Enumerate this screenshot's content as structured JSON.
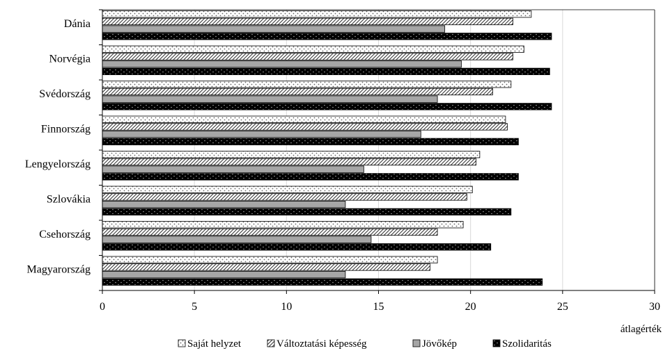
{
  "chart_data": {
    "type": "bar",
    "orientation": "horizontal",
    "categories": [
      "Dánia",
      "Norvégia",
      "Svédország",
      "Finnország",
      "Lengyelország",
      "Szlovákia",
      "Csehország",
      "Magyarország"
    ],
    "series": [
      {
        "name": "Saját helyzet",
        "pattern": "dots",
        "values": [
          23.3,
          22.9,
          22.2,
          21.9,
          20.5,
          20.1,
          19.6,
          18.2
        ]
      },
      {
        "name": "Változtatási képesség",
        "pattern": "hatch",
        "values": [
          22.3,
          22.3,
          21.2,
          22.0,
          20.3,
          19.8,
          18.2,
          17.8
        ]
      },
      {
        "name": "Jövőkép",
        "pattern": "gray",
        "values": [
          18.6,
          19.5,
          18.2,
          17.3,
          14.2,
          13.2,
          14.6,
          13.2
        ]
      },
      {
        "name": "Szolidaritás",
        "pattern": "black-dots",
        "values": [
          24.4,
          24.3,
          24.4,
          22.6,
          22.6,
          22.2,
          21.1,
          23.9
        ]
      }
    ],
    "xlim": [
      0,
      30
    ],
    "xticks": [
      0,
      5,
      10,
      15,
      20,
      25,
      30
    ],
    "xlabel": "átlagérték",
    "ylabel": "",
    "title": "",
    "grid": "vertical",
    "legend": "bottom"
  }
}
